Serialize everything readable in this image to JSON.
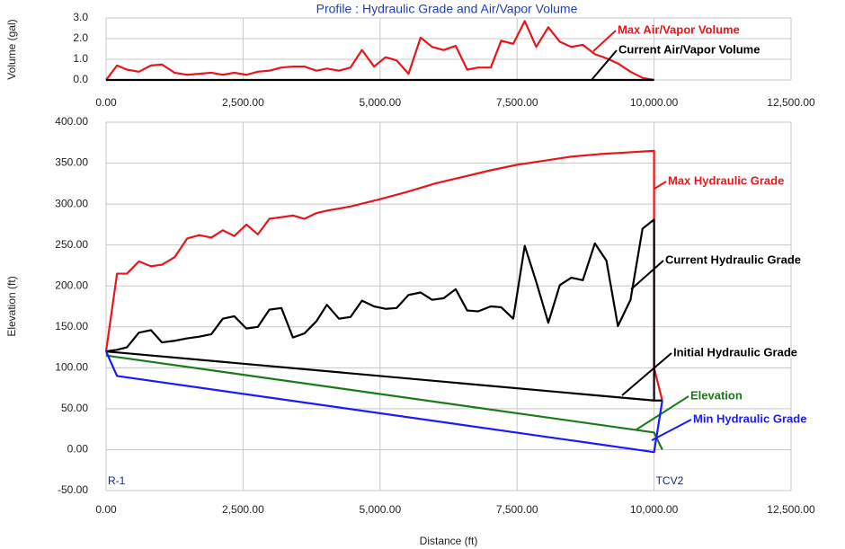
{
  "chart_data": [
    {
      "type": "line",
      "title": "Profile : Hydraulic Grade and Air/Vapor Volume",
      "y_label": "Volume (gal)",
      "xlim": [
        0,
        12500
      ],
      "xticks": [
        {
          "value": 0,
          "label": "0.00"
        },
        {
          "value": 2500,
          "label": "2,500.00"
        },
        {
          "value": 5000,
          "label": "5,000.00"
        },
        {
          "value": 7500,
          "label": "7,500.00"
        },
        {
          "value": 10000,
          "label": "10,000.00"
        },
        {
          "value": 12500,
          "label": "12,500.00"
        }
      ],
      "ylim": [
        0,
        3
      ],
      "yticks": [
        {
          "value": 0,
          "label": "0.0"
        },
        {
          "value": 1,
          "label": "1.0"
        },
        {
          "value": 2,
          "label": "2.0"
        },
        {
          "value": 3,
          "label": "3.0"
        }
      ],
      "grid": true,
      "series": [
        {
          "name": "Max Air/Vapor Volume",
          "color": "#e8161b",
          "x": [
            0,
            200,
            380,
            600,
            820,
            1020,
            1250,
            1480,
            1700,
            1920,
            2130,
            2340,
            2560,
            2770,
            2980,
            3200,
            3410,
            3620,
            3840,
            4030,
            4250,
            4460,
            4670,
            4890,
            5100,
            5300,
            5520,
            5740,
            5950,
            6160,
            6380,
            6590,
            6790,
            7020,
            7210,
            7430,
            7640,
            7850,
            8070,
            8280,
            8490,
            8700,
            8920,
            9130,
            9340,
            9570,
            9790,
            10000
          ],
          "values": [
            0,
            0.7,
            0.5,
            0.4,
            0.7,
            0.75,
            0.35,
            0.25,
            0.3,
            0.35,
            0.25,
            0.35,
            0.25,
            0.4,
            0.45,
            0.6,
            0.65,
            0.65,
            0.45,
            0.55,
            0.45,
            0.6,
            1.45,
            0.65,
            1.1,
            0.95,
            0.3,
            2.05,
            1.6,
            1.45,
            1.65,
            0.5,
            0.6,
            0.6,
            1.9,
            1.75,
            2.85,
            1.6,
            2.55,
            1.85,
            1.6,
            1.7,
            1.25,
            1.05,
            0.8,
            0.4,
            0.1,
            0
          ]
        },
        {
          "name": "Current Air/Vapor Volume",
          "color": "#000000",
          "x": [
            0,
            10000
          ],
          "values": [
            0,
            0
          ]
        }
      ]
    },
    {
      "type": "line",
      "y_label": "Elevation (ft)",
      "x_label": "Distance (ft)",
      "xlim": [
        0,
        12500
      ],
      "xticks": [
        {
          "value": 0,
          "label": "0.00"
        },
        {
          "value": 2500,
          "label": "2,500.00"
        },
        {
          "value": 5000,
          "label": "5,000.00"
        },
        {
          "value": 7500,
          "label": "7,500.00"
        },
        {
          "value": 10000,
          "label": "10,000.00"
        },
        {
          "value": 12500,
          "label": "12,500.00"
        }
      ],
      "ylim": [
        -50,
        400
      ],
      "yticks": [
        {
          "value": -50,
          "label": "-50.00"
        },
        {
          "value": 0,
          "label": "0.00"
        },
        {
          "value": 50,
          "label": "50.00"
        },
        {
          "value": 100,
          "label": "100.00"
        },
        {
          "value": 150,
          "label": "150.00"
        },
        {
          "value": 200,
          "label": "200.00"
        },
        {
          "value": 250,
          "label": "250.00"
        },
        {
          "value": 300,
          "label": "300.00"
        },
        {
          "value": 350,
          "label": "350.00"
        },
        {
          "value": 400,
          "label": "400.00"
        }
      ],
      "grid": true,
      "nodes": [
        {
          "label": "R-1",
          "x": 0
        },
        {
          "label": "TCV2",
          "x": 10000
        }
      ],
      "series": [
        {
          "name": "Max Hydraulic Grade",
          "color": "#e8161b",
          "x": [
            0,
            200,
            380,
            600,
            820,
            1020,
            1250,
            1480,
            1700,
            1920,
            2130,
            2340,
            2560,
            2770,
            2980,
            3200,
            3410,
            3620,
            3840,
            4030,
            4460,
            5000,
            5500,
            6000,
            6500,
            7000,
            7500,
            8000,
            8500,
            9000,
            9500,
            10000,
            10000,
            10150
          ],
          "values": [
            120,
            215,
            215,
            230,
            224,
            226,
            235,
            258,
            262,
            259,
            268,
            261,
            275,
            263,
            282,
            284,
            286,
            282,
            289,
            292,
            297,
            306,
            315,
            325,
            333,
            341,
            348,
            353,
            358,
            361,
            363,
            365,
            100,
            60
          ]
        },
        {
          "name": "Current Hydraulic Grade",
          "color": "#000000",
          "x": [
            0,
            200,
            380,
            600,
            820,
            1020,
            1250,
            1480,
            1700,
            1920,
            2130,
            2340,
            2560,
            2770,
            2980,
            3200,
            3410,
            3620,
            3840,
            4030,
            4250,
            4460,
            4670,
            4890,
            5100,
            5300,
            5520,
            5740,
            5950,
            6160,
            6380,
            6590,
            6790,
            7020,
            7210,
            7430,
            7640,
            7850,
            8070,
            8280,
            8490,
            8700,
            8920,
            9130,
            9340,
            9570,
            9790,
            10000,
            10000
          ],
          "values": [
            120,
            122,
            125,
            143,
            146,
            131,
            133,
            136,
            138,
            141,
            160,
            163,
            148,
            150,
            171,
            173,
            137,
            142,
            157,
            177,
            160,
            162,
            182,
            175,
            172,
            173,
            189,
            192,
            183,
            185,
            196,
            170,
            169,
            175,
            174,
            160,
            249,
            205,
            155,
            201,
            210,
            207,
            252,
            231,
            151,
            183,
            270,
            281,
            60
          ]
        },
        {
          "name": "Initial Hydraulic Grade",
          "color": "#000000",
          "x": [
            0,
            10000,
            10150
          ],
          "values": [
            120,
            60,
            60
          ]
        },
        {
          "name": "Elevation",
          "color": "#1a7a1a",
          "x": [
            0,
            10000,
            10150
          ],
          "values": [
            115,
            21,
            0
          ]
        },
        {
          "name": "Min Hydraulic Grade",
          "color": "#1a1aff",
          "x": [
            0,
            200,
            10000,
            10150
          ],
          "values": [
            120,
            90,
            -3,
            60
          ]
        }
      ]
    }
  ]
}
